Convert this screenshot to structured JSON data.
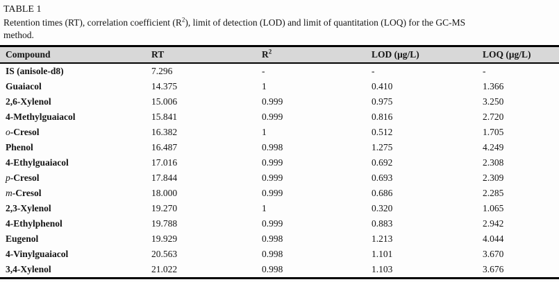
{
  "page": {
    "label": "TABLE 1",
    "caption": {
      "part1": "Retention times (RT), correlation coefficient (R",
      "sup": "2",
      "part2": "), limit of detection (LOD) and limit of quantitation (LOQ) for the GC-MS",
      "line2": "method."
    }
  },
  "table": {
    "headers": {
      "compound": "Compound",
      "rt": "RT",
      "r2_base": "R",
      "r2_sup": "2",
      "lod": "LOD (μg/L)",
      "loq": "LOQ (μg/L)"
    },
    "rows": [
      {
        "prefix": "",
        "name": "IS (anisole-d8)",
        "rt": "7.296",
        "r2": "-",
        "lod": "-",
        "loq": "-"
      },
      {
        "prefix": "",
        "name": "Guaiacol",
        "rt": "14.375",
        "r2": "1",
        "lod": "0.410",
        "loq": "1.366"
      },
      {
        "prefix": "",
        "name": "2,6-Xylenol",
        "rt": "15.006",
        "r2": "0.999",
        "lod": "0.975",
        "loq": "3.250"
      },
      {
        "prefix": "",
        "name": "4-Methylguaiacol",
        "rt": "15.841",
        "r2": "0.999",
        "lod": "0.816",
        "loq": "2.720"
      },
      {
        "prefix": "o",
        "name": "-Cresol",
        "rt": "16.382",
        "r2": "1",
        "lod": "0.512",
        "loq": "1.705"
      },
      {
        "prefix": "",
        "name": "Phenol",
        "rt": "16.487",
        "r2": "0.998",
        "lod": "1.275",
        "loq": "4.249"
      },
      {
        "prefix": "",
        "name": "4-Ethylguaiacol",
        "rt": "17.016",
        "r2": "0.999",
        "lod": "0.692",
        "loq": "2.308"
      },
      {
        "prefix": "p",
        "name": "-Cresol",
        "rt": "17.844",
        "r2": "0.999",
        "lod": "0.693",
        "loq": "2.309"
      },
      {
        "prefix": "m",
        "name": "-Cresol",
        "rt": "18.000",
        "r2": "0.999",
        "lod": "0.686",
        "loq": "2.285"
      },
      {
        "prefix": "",
        "name": "2,3-Xylenol",
        "rt": "19.270",
        "r2": "1",
        "lod": "0.320",
        "loq": "1.065"
      },
      {
        "prefix": "",
        "name": "4-Ethylphenol",
        "rt": "19.788",
        "r2": "0.999",
        "lod": "0.883",
        "loq": "2.942"
      },
      {
        "prefix": "",
        "name": "Eugenol",
        "rt": "19.929",
        "r2": "0.998",
        "lod": "1.213",
        "loq": "4.044"
      },
      {
        "prefix": "",
        "name": "4-Vinylguaiacol",
        "rt": "20.563",
        "r2": "0.998",
        "lod": "1.101",
        "loq": "3.670"
      },
      {
        "prefix": "",
        "name": "3,4-Xylenol",
        "rt": "21.022",
        "r2": "0.998",
        "lod": "1.103",
        "loq": "3.676"
      }
    ]
  },
  "colors": {
    "header_bg": "#d8d8d8",
    "rule": "#000000",
    "text": "#141414",
    "page_bg": "#fdfdfd"
  }
}
